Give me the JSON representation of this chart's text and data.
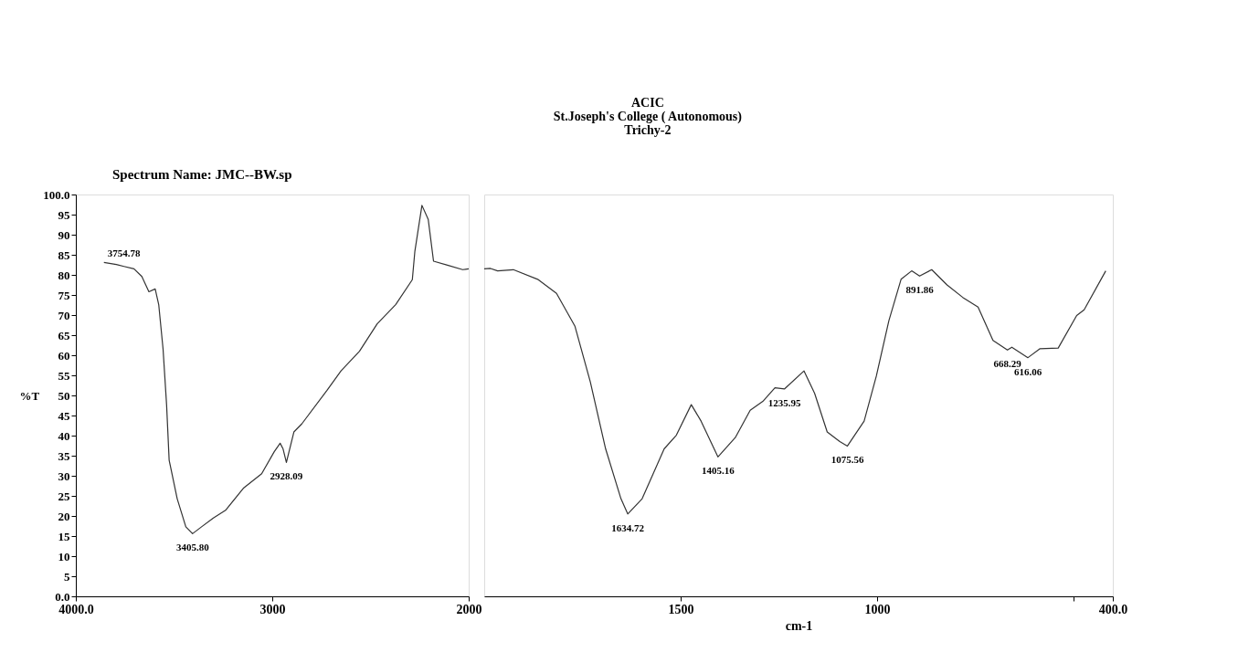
{
  "chart_data": [
    {
      "type": "line",
      "subtitle": "Spectrum Name: JMC--BW.sp",
      "ylabel": "%T",
      "series": [
        {
          "color": "#333333",
          "x": [
            3857,
            3794,
            3754.78,
            3704,
            3664,
            3628,
            3596,
            3578,
            3556,
            3538,
            3525,
            3484,
            3440,
            3405.8,
            3360,
            3300,
            3238,
            3145,
            3054,
            2990,
            2960,
            2945,
            2928.09,
            2890,
            2850,
            2722,
            2650,
            2556,
            2466,
            2372,
            2287,
            2274,
            2238,
            2206,
            2179,
            2108,
            2031,
            2000
          ],
          "values": [
            83.1,
            82.6,
            82.1,
            81.5,
            79.6,
            75.8,
            76.5,
            72.6,
            61.6,
            47.7,
            33.9,
            24.3,
            17.3,
            15.6,
            17.3,
            19.5,
            21.4,
            27.0,
            30.5,
            36.0,
            38.1,
            36.7,
            33.3,
            40.9,
            42.9,
            51.2,
            56.1,
            61.0,
            67.8,
            72.6,
            78.8,
            85.9,
            97.3,
            93.8,
            83.4,
            82.4,
            81.3,
            81.5
          ]
        }
      ],
      "xlim": [
        4000,
        2000
      ],
      "xticks": [
        {
          "value": 4000,
          "label": "4000.0"
        },
        3000,
        2000
      ],
      "ylim": [
        0,
        100
      ],
      "yticks": [
        {
          "value": 0,
          "label": "0.0"
        },
        5,
        10,
        15,
        20,
        25,
        30,
        35,
        40,
        45,
        50,
        55,
        60,
        65,
        70,
        75,
        80,
        85,
        90,
        95,
        {
          "value": 100,
          "label": "100.0"
        }
      ],
      "grid": false,
      "marker": "none",
      "line_style": "solid",
      "annotations": [
        {
          "text": "3754.78",
          "x": 3754.78,
          "y": 82.1
        },
        {
          "text": "3405.80",
          "x": 3405.8,
          "y": 15.6
        },
        {
          "text": "2928.09",
          "x": 2928.09,
          "y": 33.3
        }
      ]
    },
    {
      "type": "line",
      "title": "ACIC\nSt.Joseph's College ( Autonomous)\nTrichy-2",
      "xlabel": "cm-1",
      "series": [
        {
          "color": "#333333",
          "x": [
            2000,
            1984,
            1966,
            1926,
            1864,
            1816,
            1769,
            1730,
            1691,
            1652,
            1634.72,
            1598,
            1542,
            1511,
            1473,
            1448,
            1405.16,
            1361,
            1323,
            1291,
            1260,
            1235.95,
            1186,
            1159,
            1127,
            1095,
            1075.56,
            1033,
            1002,
            970,
            939,
            912,
            891.86,
            861,
            822,
            782,
            743,
            705,
            668.29,
            657,
            616.06,
            586,
            539,
            492,
            473,
            418
          ],
          "values": [
            81.5,
            81.6,
            81.0,
            81.3,
            78.9,
            75.4,
            67.2,
            53.4,
            36.7,
            24.3,
            20.5,
            24.3,
            36.7,
            40.1,
            47.7,
            43.6,
            34.7,
            39.5,
            46.3,
            48.5,
            51.9,
            51.6,
            56.1,
            50.5,
            40.9,
            38.5,
            37.4,
            43.6,
            54.8,
            68.6,
            78.9,
            81.0,
            79.7,
            81.3,
            77.5,
            74.4,
            72.0,
            63.7,
            61.3,
            62.0,
            59.4,
            61.6,
            61.8,
            69.9,
            71.3,
            81.0
          ]
        }
      ],
      "xlim": [
        2000,
        400
      ],
      "xticks": [
        1500,
        1000,
        {
          "value": 500,
          "label": null
        },
        {
          "value": 400,
          "label": "400.0"
        }
      ],
      "ylim": [
        0,
        100
      ],
      "tick_labels": "x",
      "grid": false,
      "marker": "none",
      "line_style": "solid",
      "annotations": [
        {
          "text": "1634.72",
          "x": 1634.72,
          "y": 20.5
        },
        {
          "text": "1405.16",
          "x": 1405.16,
          "y": 34.7
        },
        {
          "text": "1235.95",
          "x": 1235.95,
          "y": 51.6
        },
        {
          "text": "1075.56",
          "x": 1075.56,
          "y": 37.4
        },
        {
          "text": "891.86",
          "x": 891.86,
          "y": 79.7
        },
        {
          "text": "668.29",
          "x": 668.29,
          "y": 61.3
        },
        {
          "text": "616.06",
          "x": 616.06,
          "y": 59.4
        }
      ]
    }
  ]
}
